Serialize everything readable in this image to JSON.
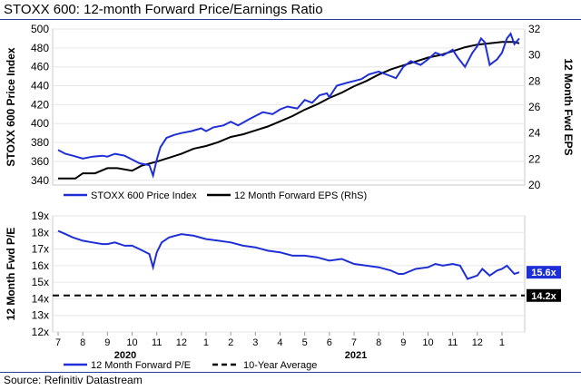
{
  "title": "STOXX 600: 12-month Forward Price/Earnings Ratio",
  "source": "Source: Refinitiv Datastream",
  "colors": {
    "price": "#1f2fd6",
    "eps": "#000000",
    "rule": "#2e3f9e",
    "badge_pe": "#1f2fd6",
    "badge_avg": "#000000"
  },
  "chart_data": [
    {
      "type": "line",
      "title": "",
      "ylabel": "STOXX 600 Price Index",
      "y2label": "12 Month Fwd EPS",
      "ylim": [
        335,
        500
      ],
      "y2lim": [
        20,
        32
      ],
      "yticks": [
        "340",
        "360",
        "380",
        "400",
        "420",
        "440",
        "460",
        "480",
        "500"
      ],
      "y2ticks": [
        "20",
        "22",
        "24",
        "26",
        "28",
        "30",
        "32"
      ],
      "legend": [
        "STOXX 600 Price Index",
        "12 Month Forward EPS (RhS)"
      ],
      "x_months": [
        0,
        1,
        2,
        3,
        4,
        5,
        6,
        7,
        8,
        9,
        10,
        11,
        12,
        13,
        14,
        15,
        16,
        17,
        18
      ],
      "series": [
        {
          "name": "STOXX 600 Price Index",
          "axis": "left",
          "x": [
            0,
            0.3,
            0.6,
            1,
            1.4,
            1.8,
            2,
            2.3,
            2.7,
            3,
            3.3,
            3.7,
            3.85,
            4,
            4.15,
            4.4,
            4.7,
            5,
            5.4,
            5.8,
            6,
            6.3,
            6.7,
            7,
            7.3,
            7.7,
            8,
            8.3,
            8.7,
            9,
            9.3,
            9.7,
            10,
            10.3,
            10.6,
            10.9,
            11,
            11.3,
            11.7,
            12,
            12.3,
            12.6,
            13,
            13.3,
            13.7,
            14,
            14.3,
            14.7,
            15,
            15.3,
            15.6,
            16,
            16.2,
            16.5,
            16.8,
            17,
            17.15,
            17.3,
            17.5,
            17.8,
            18,
            18.2,
            18.35,
            18.5,
            18.7
          ],
          "y": [
            372,
            368,
            366,
            363,
            365,
            366,
            365,
            368,
            366,
            362,
            358,
            356,
            345,
            362,
            375,
            385,
            388,
            390,
            392,
            395,
            392,
            396,
            398,
            402,
            398,
            404,
            408,
            412,
            410,
            415,
            418,
            416,
            425,
            422,
            430,
            432,
            428,
            440,
            443,
            445,
            447,
            452,
            455,
            452,
            448,
            460,
            466,
            462,
            468,
            475,
            472,
            478,
            470,
            460,
            475,
            482,
            490,
            486,
            462,
            468,
            475,
            490,
            495,
            484,
            490
          ]
        },
        {
          "name": "12 Month Forward EPS (RhS)",
          "axis": "right",
          "x": [
            0,
            0.7,
            1,
            1.5,
            2,
            2.4,
            3,
            3.4,
            4,
            4.5,
            5,
            5.5,
            6,
            6.5,
            7,
            7.5,
            8,
            8.5,
            9,
            9.5,
            10,
            10.5,
            11,
            11.5,
            12,
            12.5,
            13,
            13.5,
            14,
            14.5,
            15,
            15.5,
            16,
            16.5,
            17,
            17.5,
            18,
            18.5,
            18.7
          ],
          "y": [
            20.5,
            20.5,
            20.9,
            20.9,
            21.3,
            21.3,
            21.1,
            21.5,
            21.8,
            22.1,
            22.4,
            22.8,
            23.0,
            23.3,
            23.7,
            23.9,
            24.2,
            24.5,
            24.9,
            25.3,
            25.8,
            26.2,
            26.7,
            27.1,
            27.6,
            28.0,
            28.5,
            28.9,
            29.2,
            29.5,
            29.8,
            30.0,
            30.3,
            30.6,
            30.8,
            30.9,
            31.0,
            31.0,
            30.9
          ]
        }
      ]
    },
    {
      "type": "line",
      "ylabel": "12 Month Fwd P/E",
      "ylim": [
        12,
        19
      ],
      "yticks": [
        "12x",
        "13x",
        "14x",
        "15x",
        "16x",
        "17x",
        "18x",
        "19x"
      ],
      "legend": [
        "12 Month Forward P/E",
        "10-Year Average"
      ],
      "last_value_label": "15.6x",
      "average_label": "14.2x",
      "average_value": 14.2,
      "x_tick_labels": [
        "7",
        "8",
        "9",
        "10",
        "11",
        "12",
        "1",
        "2",
        "3",
        "4",
        "5",
        "6",
        "7",
        "8",
        "9",
        "10",
        "11",
        "12",
        "1"
      ],
      "year_labels": [
        "2020",
        "2021"
      ],
      "series": [
        {
          "name": "12 Month Forward P/E",
          "x": [
            0,
            0.3,
            0.6,
            1,
            1.4,
            1.8,
            2,
            2.3,
            2.7,
            3,
            3.3,
            3.7,
            3.85,
            4,
            4.2,
            4.5,
            5,
            5.5,
            6,
            6.5,
            7,
            7.5,
            8,
            8.5,
            9,
            9.5,
            10,
            10.5,
            11,
            11.5,
            12,
            12.5,
            13,
            13.5,
            13.8,
            14,
            14.5,
            15,
            15.3,
            15.6,
            16,
            16.3,
            16.6,
            17,
            17.2,
            17.5,
            17.8,
            18,
            18.2,
            18.5,
            18.7
          ],
          "y": [
            18.1,
            17.9,
            17.7,
            17.5,
            17.4,
            17.3,
            17.3,
            17.4,
            17.2,
            17.2,
            17.0,
            16.7,
            15.9,
            16.8,
            17.4,
            17.7,
            17.9,
            17.8,
            17.6,
            17.5,
            17.4,
            17.2,
            17.1,
            16.9,
            16.8,
            16.6,
            16.6,
            16.5,
            16.3,
            16.4,
            16.1,
            16.0,
            15.9,
            15.7,
            15.5,
            15.5,
            15.8,
            15.9,
            16.1,
            16.0,
            16.1,
            16.0,
            15.2,
            15.4,
            15.8,
            15.4,
            15.7,
            15.8,
            16.0,
            15.5,
            15.6
          ]
        },
        {
          "name": "10-Year Average",
          "x": [
            0,
            18.7
          ],
          "y": [
            14.2,
            14.2
          ]
        }
      ]
    }
  ]
}
